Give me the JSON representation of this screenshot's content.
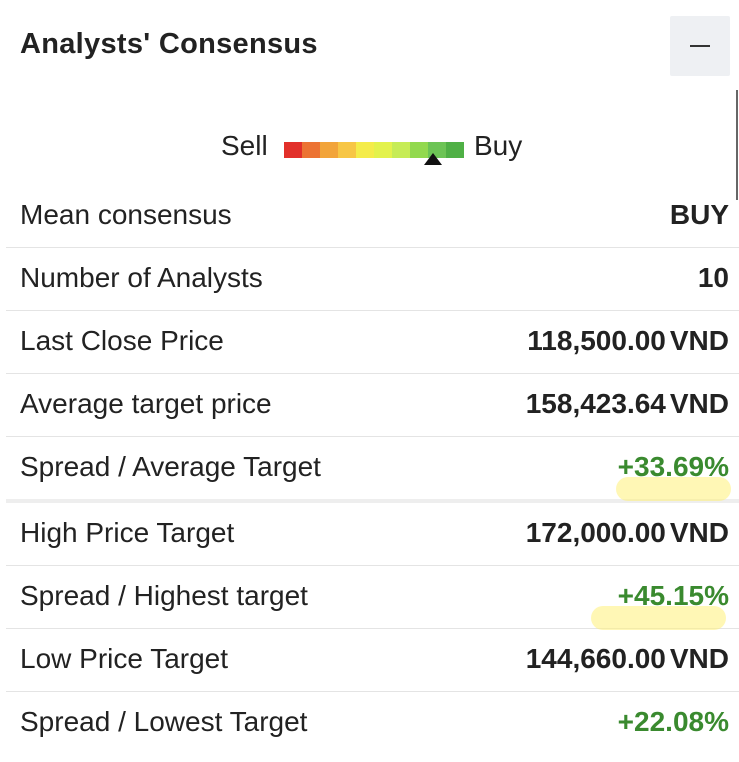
{
  "header": {
    "title": "Analysts' Consensus",
    "collapse_label": "−"
  },
  "gauge": {
    "sell_label": "Sell",
    "buy_label": "Buy",
    "colors": [
      "#e2302a",
      "#ec7333",
      "#f2a43a",
      "#f7c645",
      "#f4ec4a",
      "#e3f24c",
      "#c6ec56",
      "#92d94e",
      "#6cc455",
      "#4fb045"
    ],
    "level_fraction": 0.83
  },
  "rows": [
    {
      "label": "Mean consensus",
      "value": "BUY",
      "unit": ""
    },
    {
      "label": "Number of Analysts",
      "value": "10",
      "unit": ""
    },
    {
      "label": "Last Close Price",
      "value": "118,500.00",
      "unit": "VND"
    },
    {
      "label": "Average target price",
      "value": "158,423.64",
      "unit": "VND"
    },
    {
      "label": "Spread / Average Target",
      "value": "+33.69%",
      "unit": ""
    },
    {
      "label": "High Price Target",
      "value": "172,000.00",
      "unit": "VND"
    },
    {
      "label": "Spread / Highest target",
      "value": "+45.15%",
      "unit": ""
    },
    {
      "label": "Low Price Target",
      "value": "144,660.00",
      "unit": "VND"
    },
    {
      "label": "Spread / Lowest Target",
      "value": "+22.08%",
      "unit": ""
    }
  ],
  "colors": {
    "positive": "#3a8a2f",
    "highlight": "#fff078"
  }
}
